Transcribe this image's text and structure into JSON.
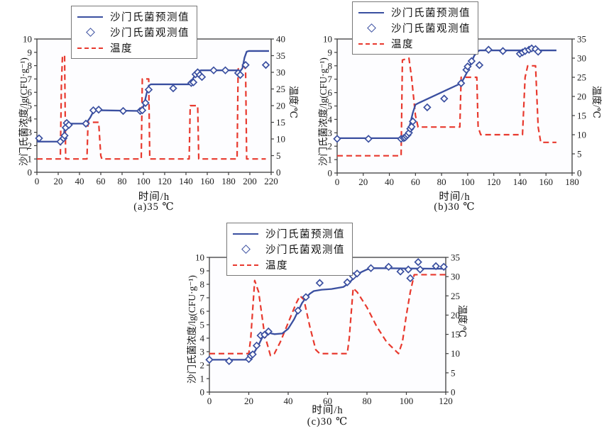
{
  "palette": {
    "predicted": "#3a4fa0",
    "observed": "#3a4fa0",
    "temperature": "#e8392e",
    "axis": "#3d3d3d",
    "plot_bg": "#fdfdff"
  },
  "chart_data": [
    {
      "id": "a",
      "type": "line",
      "caption": "(a)35 ℃",
      "xlabel": "时间/h",
      "ylabel_left": "沙门氏菌浓度/lg(CFU·g⁻¹)",
      "ylabel_right": "温度/℃",
      "xlim": [
        0,
        220
      ],
      "xtick_step": 20,
      "ylim_left": [
        0,
        10
      ],
      "ytick_step_left": 1,
      "ylim_right": [
        0,
        40
      ],
      "ytick_step_right": 5,
      "grid": false,
      "legend_position": "top-left",
      "legend": [
        "沙门氏菌预测值",
        "沙门氏菌观测值",
        "温度"
      ],
      "series": [
        {
          "name": "沙门氏菌预测值",
          "role": "predicted",
          "type": "line",
          "axis": "left",
          "x": [
            0,
            22,
            24,
            25,
            26,
            27,
            28,
            46,
            50,
            53,
            56,
            58,
            60,
            97,
            99,
            101,
            103,
            105,
            107,
            143,
            146,
            149,
            152,
            154,
            189,
            191,
            193,
            195,
            197,
            199,
            218
          ],
          "y": [
            2.3,
            2.3,
            2.4,
            2.6,
            3.3,
            3.4,
            3.65,
            3.65,
            4.1,
            4.55,
            4.65,
            4.7,
            4.65,
            4.6,
            4.7,
            5.2,
            5.9,
            6.5,
            6.6,
            6.6,
            6.95,
            7.35,
            7.6,
            7.65,
            7.65,
            7.6,
            7.8,
            8.6,
            9.05,
            9.1,
            9.1
          ]
        },
        {
          "name": "沙门氏菌观测值",
          "role": "observed",
          "type": "scatter",
          "marker": "diamond",
          "axis": "left",
          "x": [
            2,
            22,
            25,
            26,
            27,
            28,
            30,
            46,
            53,
            58,
            81,
            97,
            99,
            102,
            105,
            128,
            145,
            147,
            149,
            151,
            153,
            155,
            166,
            177,
            189,
            191,
            196,
            215
          ],
          "y": [
            2.55,
            2.3,
            2.55,
            2.75,
            3.35,
            3.7,
            3.55,
            3.65,
            4.65,
            4.7,
            4.6,
            4.6,
            4.65,
            5.2,
            6.2,
            6.3,
            6.7,
            6.75,
            7.35,
            7.5,
            7.3,
            7.15,
            7.65,
            7.65,
            7.45,
            7.3,
            8.05,
            8.05
          ]
        },
        {
          "name": "温度",
          "role": "temperature",
          "type": "line",
          "style": "dashed",
          "axis": "right",
          "x": [
            0,
            22,
            23,
            24,
            26,
            27,
            47,
            48,
            58,
            60,
            61,
            98,
            99,
            105,
            106,
            143,
            144,
            151,
            152,
            188,
            189,
            194,
            196,
            197,
            215
          ],
          "y": [
            4,
            4,
            26,
            35,
            35,
            4,
            4,
            15,
            15,
            5,
            4,
            4,
            28,
            28,
            4,
            4,
            20,
            20,
            4,
            4,
            31,
            32,
            31,
            4,
            4
          ]
        }
      ]
    },
    {
      "id": "b",
      "type": "line",
      "caption": "(b)30 ℃",
      "xlabel": "时间/h",
      "ylabel_left": "沙门氏菌浓度/lg(CFU·g⁻¹)",
      "ylabel_right": "温度/℃",
      "xlim": [
        0,
        180
      ],
      "xtick_step": 20,
      "ylim_left": [
        0,
        10
      ],
      "ytick_step_left": 1,
      "ylim_right": [
        0,
        35
      ],
      "ytick_step_right": 5,
      "grid": false,
      "legend_position": "top-left",
      "legend": [
        "沙门氏菌预测值",
        "沙门氏菌观测值",
        "温度"
      ],
      "series": [
        {
          "name": "沙门氏菌预测值",
          "role": "predicted",
          "type": "line",
          "axis": "left",
          "x": [
            0,
            50,
            52,
            54,
            56,
            58,
            60,
            63,
            95,
            97,
            100,
            103,
            105,
            107,
            109,
            168
          ],
          "y": [
            2.6,
            2.6,
            2.7,
            3.0,
            3.7,
            4.5,
            5.1,
            5.25,
            6.7,
            7.05,
            7.6,
            8.3,
            8.75,
            9.0,
            9.15,
            9.15
          ]
        },
        {
          "name": "沙门氏菌观测值",
          "role": "observed",
          "type": "scatter",
          "marker": "diamond",
          "axis": "left",
          "x": [
            0,
            24,
            49,
            51,
            52,
            53,
            54,
            55,
            56,
            57,
            58,
            69,
            82,
            95,
            99,
            100,
            103,
            109,
            116,
            127,
            140,
            142,
            144,
            147,
            149,
            152,
            154
          ],
          "y": [
            2.55,
            2.55,
            2.55,
            2.6,
            2.65,
            2.75,
            2.85,
            3.0,
            3.3,
            3.45,
            3.85,
            4.9,
            5.55,
            6.7,
            7.7,
            7.95,
            8.35,
            8.05,
            9.2,
            9.1,
            8.9,
            9.0,
            9.1,
            9.2,
            9.3,
            9.25,
            9.05
          ]
        },
        {
          "name": "温度",
          "role": "temperature",
          "type": "line",
          "style": "dashed",
          "axis": "right",
          "x": [
            0,
            49,
            50,
            55,
            57,
            60,
            62,
            94,
            95,
            107,
            108,
            110,
            142,
            144,
            146,
            152,
            154,
            156,
            168
          ],
          "y": [
            4.5,
            4.5,
            29.5,
            30,
            25,
            15,
            12,
            12,
            25,
            25,
            12,
            10,
            10,
            25,
            28,
            28,
            12,
            8,
            8
          ]
        }
      ]
    },
    {
      "id": "c",
      "type": "line",
      "caption": "(c)30 ℃",
      "xlabel": "时间/h",
      "ylabel_left": "沙门氏菌浓度/lg(CFU·g⁻¹)",
      "ylabel_right": "温度/℃",
      "xlim": [
        0,
        120
      ],
      "xtick_step": 20,
      "ylim_left": [
        0,
        10
      ],
      "ytick_step_left": 1,
      "ylim_right": [
        0,
        35
      ],
      "ytick_step_right": 5,
      "grid": false,
      "legend_position": "top-left",
      "legend": [
        "沙门氏菌预测值",
        "沙门氏菌观测值",
        "温度"
      ],
      "series": [
        {
          "name": "沙门氏菌预测值",
          "role": "predicted",
          "type": "line",
          "axis": "left",
          "x": [
            0,
            20,
            21,
            22,
            23,
            25,
            27,
            28,
            30,
            33,
            37,
            40,
            43,
            45,
            47,
            49,
            51,
            53,
            57,
            62,
            68,
            71,
            74,
            77,
            80,
            83,
            120
          ],
          "y": [
            2.4,
            2.4,
            2.55,
            2.75,
            3.0,
            3.5,
            4.1,
            4.3,
            4.4,
            4.3,
            4.35,
            4.7,
            5.4,
            6.0,
            6.6,
            7.0,
            7.3,
            7.5,
            7.6,
            7.65,
            7.8,
            8.1,
            8.6,
            8.9,
            9.1,
            9.2,
            9.15
          ]
        },
        {
          "name": "沙门氏菌观测值",
          "role": "observed",
          "type": "scatter",
          "marker": "diamond",
          "axis": "left",
          "x": [
            0,
            10,
            20,
            21,
            22,
            24,
            26,
            28,
            30,
            45,
            49,
            56,
            70,
            73,
            75,
            82,
            91,
            97,
            101,
            102,
            106,
            107,
            115,
            119
          ],
          "y": [
            2.4,
            2.3,
            2.45,
            2.7,
            2.8,
            3.45,
            4.2,
            4.25,
            4.5,
            6.05,
            7.05,
            8.1,
            8.15,
            8.6,
            8.8,
            9.2,
            9.3,
            8.95,
            9.1,
            8.45,
            9.65,
            9.1,
            9.35,
            9.3
          ]
        },
        {
          "name": "温度",
          "role": "temperature",
          "type": "line",
          "style": "dashed",
          "axis": "right",
          "x": [
            0,
            20,
            21,
            23,
            25,
            28,
            31,
            33,
            36,
            40,
            44,
            46,
            48,
            51,
            54,
            56,
            70,
            71,
            73,
            75,
            80,
            85,
            90,
            95,
            96,
            98,
            100,
            102,
            104,
            120
          ],
          "y": [
            10,
            10,
            14,
            29,
            26,
            15,
            9.5,
            10,
            13,
            18,
            23,
            25,
            24,
            17,
            11,
            10,
            10,
            14,
            27,
            26,
            22,
            17,
            13,
            10.5,
            10,
            13,
            20,
            26,
            30.5,
            30.5
          ]
        }
      ]
    }
  ]
}
